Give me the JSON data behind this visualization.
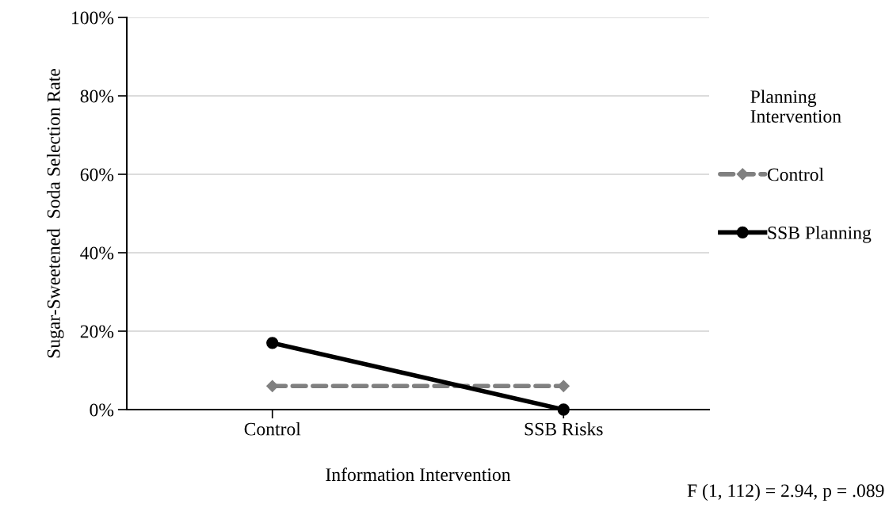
{
  "chart_data": {
    "type": "line",
    "categories": [
      "Control",
      "SSB Risks"
    ],
    "series": [
      {
        "name": "Control",
        "color": "#808080",
        "values": [
          6,
          6
        ],
        "marker": "diamond",
        "line_style": "dashed"
      },
      {
        "name": "SSB Planning",
        "color": "#000000",
        "values": [
          17,
          0
        ],
        "marker": "circle",
        "line_style": "solid"
      }
    ],
    "xlabel": "Information Intervention",
    "ylabel": "Sugar-Sweetened  Soda Selection Rate",
    "legend_title": "Planning\nIntervention",
    "legend": "right",
    "ylim": [
      0,
      100
    ],
    "yticks": [
      {
        "value": 0,
        "label": "0%"
      },
      {
        "value": 20,
        "label": "20%"
      },
      {
        "value": 40,
        "label": "40%"
      },
      {
        "value": 60,
        "label": "60%"
      },
      {
        "value": 80,
        "label": "80%"
      },
      {
        "value": 100,
        "label": "100%"
      }
    ],
    "grid": "y",
    "annotations": [
      "F (1, 112) = 2.94, p = .089"
    ]
  }
}
